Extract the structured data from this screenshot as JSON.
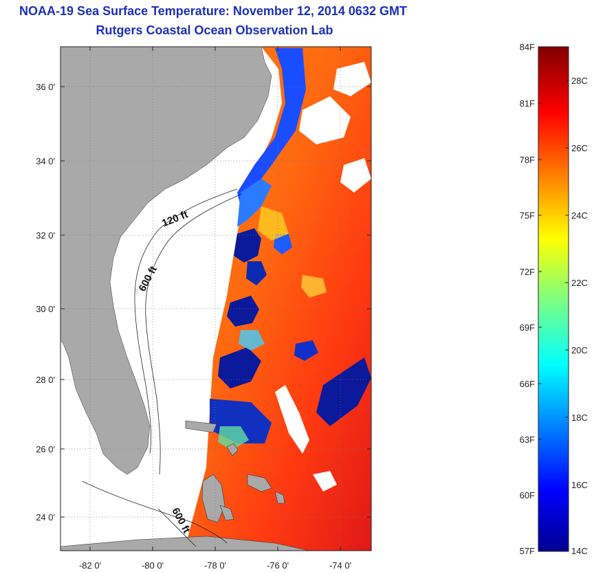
{
  "title": {
    "line1": "NOAA-19 Sea Surface Temperature:  November 12, 2014 0632 GMT",
    "line2": "Rutgers Coastal Ocean Observation Lab"
  },
  "axes": {
    "lat_labels": [
      "36 0'",
      "34 0'",
      "32 0'",
      "30 0'",
      "28 0'",
      "26 0'",
      "24 0'"
    ],
    "lon_labels": [
      "-82 0'",
      "-80 0'",
      "-78 0'",
      "-76 0'",
      "-74 0'"
    ]
  },
  "depth_labels": [
    "120 ft",
    "600 ft",
    "600 ft"
  ],
  "colorbar": {
    "f_labels": [
      "84F",
      "81F",
      "78F",
      "75F",
      "72F",
      "69F",
      "66F",
      "63F",
      "60F",
      "57F"
    ],
    "c_labels": [
      "28C",
      "26C",
      "24C",
      "22C",
      "20C",
      "18C",
      "16C",
      "14C"
    ]
  },
  "colors": {
    "title": "#1c2fb8",
    "land": "#a9a9a9",
    "ocean_bg": "#ffffff"
  }
}
